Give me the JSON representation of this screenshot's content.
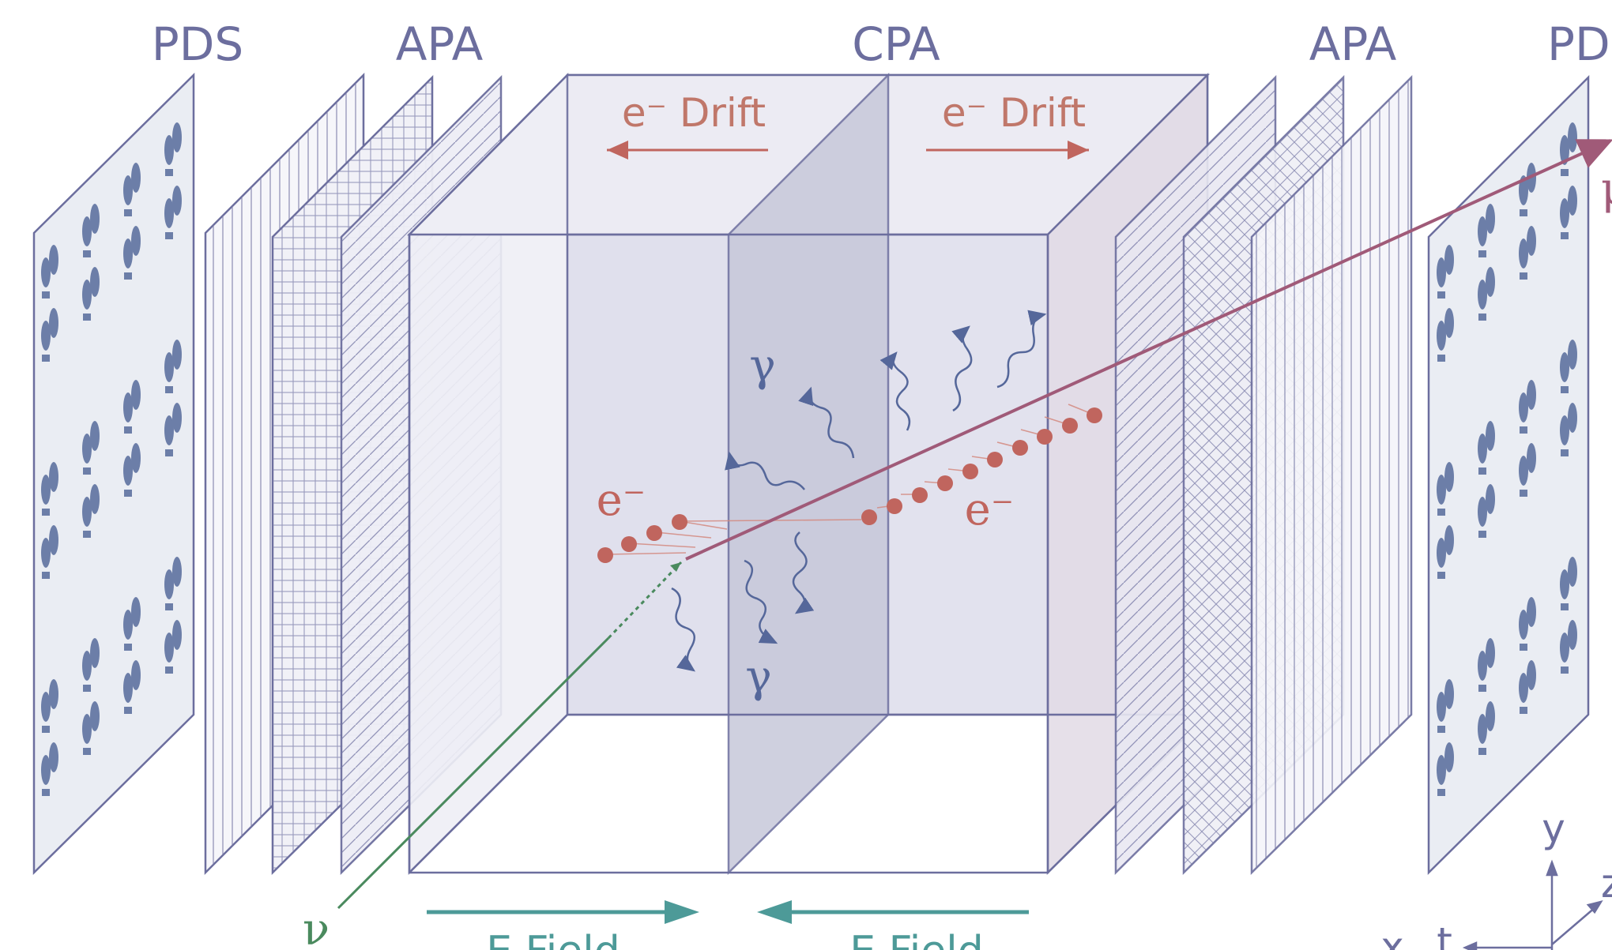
{
  "labels": {
    "pds_left": "PDS",
    "apa_left": "APA",
    "cpa": "CPA",
    "apa_right": "APA",
    "pds_right": "PDS",
    "drift_left": "e⁻ Drift",
    "drift_right": "e⁻ Drift",
    "gamma_top": "γ",
    "gamma_bottom": "γ",
    "electron_left": "e⁻",
    "electron_right": "e⁻",
    "neutrino": "ν",
    "muon": "μ",
    "efield_left": "E Field",
    "efield_right": "E Field",
    "axis_y": "y",
    "axis_z": "z",
    "axis_x": "x",
    "axis_t": "t"
  },
  "colors": {
    "frame": "#6c6e9e",
    "electron": "#c0655e",
    "track": "#a05a78",
    "neutrino": "#4a8a5e",
    "field": "#4d9a98",
    "photon": "#55679a"
  }
}
